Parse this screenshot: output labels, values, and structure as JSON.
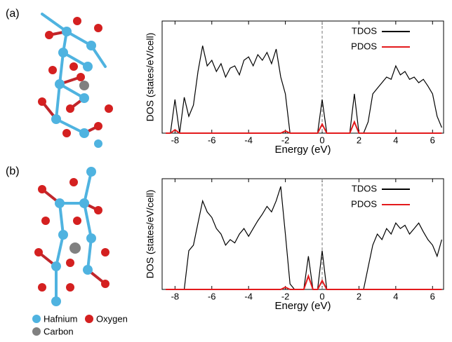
{
  "chart_data": [
    {
      "type": "line",
      "panel_label": "(a)",
      "xlabel": "Energy (eV)",
      "ylabel": "DOS (states/eV/cell)",
      "xlim": [
        -8.7,
        6.6
      ],
      "xticks": [
        -8,
        -6,
        -4,
        -2,
        0,
        2,
        4,
        6
      ],
      "ylim": [
        0,
        10
      ],
      "vline": 0,
      "legend": "upper right",
      "x": [
        -8.5,
        -8.25,
        -8,
        -7.75,
        -7.5,
        -7.25,
        -7,
        -6.75,
        -6.5,
        -6.25,
        -6,
        -5.75,
        -5.5,
        -5.25,
        -5,
        -4.75,
        -4.5,
        -4.25,
        -4,
        -3.75,
        -3.5,
        -3.25,
        -3,
        -2.75,
        -2.5,
        -2.25,
        -2,
        -1.75,
        -1.5,
        -1.25,
        -1,
        -0.75,
        -0.5,
        -0.25,
        0,
        0.25,
        0.5,
        0.75,
        1,
        1.25,
        1.5,
        1.75,
        2,
        2.25,
        2.5,
        2.75,
        3,
        3.25,
        3.5,
        3.75,
        4,
        4.25,
        4.5,
        4.75,
        5,
        5.25,
        5.5,
        5.75,
        6,
        6.25,
        6.5
      ],
      "series": [
        {
          "name": "TDOS",
          "color": "#000000",
          "values": [
            0,
            0,
            3.0,
            0,
            3.2,
            1.5,
            2.5,
            5.5,
            7.8,
            6.0,
            6.5,
            5.5,
            6.2,
            5.0,
            5.8,
            6.0,
            5.2,
            6.5,
            6.8,
            6.0,
            7.0,
            6.5,
            7.2,
            6.2,
            7.5,
            5.0,
            3.5,
            0,
            0,
            0,
            0,
            0,
            0,
            0,
            3.0,
            0,
            0,
            0,
            0,
            0,
            0,
            3.5,
            0,
            0,
            1.0,
            3.5,
            4.0,
            4.5,
            5.0,
            4.8,
            6.0,
            5.2,
            5.5,
            4.8,
            5.0,
            4.5,
            4.8,
            4.2,
            3.5,
            1.5,
            0.5
          ]
        },
        {
          "name": "PDOS",
          "color": "#e31a1c",
          "values": [
            0,
            0,
            0.3,
            0,
            0,
            0,
            0,
            0,
            0,
            0,
            0,
            0,
            0,
            0,
            0,
            0,
            0,
            0,
            0,
            0,
            0,
            0,
            0,
            0,
            0,
            0,
            0.2,
            0,
            0,
            0,
            0,
            0,
            0,
            0,
            0.8,
            0,
            0,
            0,
            0,
            0,
            0,
            1.0,
            0,
            0,
            0,
            0,
            0,
            0,
            0,
            0,
            0,
            0,
            0,
            0,
            0,
            0,
            0,
            0,
            0,
            0,
            0
          ]
        }
      ]
    },
    {
      "type": "line",
      "panel_label": "(b)",
      "xlabel": "Energy (eV)",
      "ylabel": "DOS (states/eV/cell)",
      "xlim": [
        -8.7,
        6.6
      ],
      "xticks": [
        -8,
        -6,
        -4,
        -2,
        0,
        2,
        4,
        6
      ],
      "ylim": [
        0,
        10
      ],
      "vline": 0,
      "legend": "upper right",
      "x": [
        -8.5,
        -8.25,
        -8,
        -7.75,
        -7.5,
        -7.25,
        -7,
        -6.75,
        -6.5,
        -6.25,
        -6,
        -5.75,
        -5.5,
        -5.25,
        -5,
        -4.75,
        -4.5,
        -4.25,
        -4,
        -3.75,
        -3.5,
        -3.25,
        -3,
        -2.75,
        -2.5,
        -2.25,
        -2,
        -1.75,
        -1.5,
        -1.25,
        -1,
        -0.75,
        -0.5,
        -0.25,
        0,
        0.25,
        0.5,
        0.75,
        1,
        1.25,
        1.5,
        1.75,
        2,
        2.25,
        2.5,
        2.75,
        3,
        3.25,
        3.5,
        3.75,
        4,
        4.25,
        4.5,
        4.75,
        5,
        5.25,
        5.5,
        5.75,
        6,
        6.25,
        6.5
      ],
      "series": [
        {
          "name": "TDOS",
          "color": "#000000",
          "values": [
            0,
            0,
            0,
            0,
            0,
            3.5,
            4.0,
            6.0,
            8.0,
            7.0,
            6.5,
            5.5,
            5.0,
            4.0,
            4.5,
            4.2,
            5.0,
            5.5,
            4.8,
            5.5,
            6.2,
            6.8,
            7.5,
            7.0,
            8.0,
            9.3,
            5.0,
            0.5,
            0,
            0,
            0,
            3.0,
            0,
            0,
            3.5,
            0,
            0,
            0,
            0,
            0,
            0,
            0,
            0,
            0,
            2.0,
            4.0,
            5.0,
            4.5,
            5.5,
            5.0,
            6.0,
            5.5,
            5.8,
            5.0,
            5.5,
            6.0,
            5.2,
            4.5,
            4.0,
            3.0,
            4.5
          ]
        },
        {
          "name": "PDOS",
          "color": "#e31a1c",
          "values": [
            0,
            0,
            0,
            0,
            0,
            0,
            0,
            0,
            0,
            0,
            0,
            0,
            0,
            0,
            0,
            0,
            0,
            0,
            0,
            0,
            0,
            0,
            0,
            0,
            0,
            0,
            0.2,
            0,
            0,
            0,
            0,
            1.2,
            0,
            0,
            0.8,
            0,
            0,
            0,
            0,
            0,
            0,
            0,
            0,
            0,
            0,
            0,
            0,
            0,
            0,
            0,
            0,
            0,
            0,
            0,
            0,
            0,
            0,
            0,
            0,
            0,
            0
          ]
        }
      ]
    }
  ],
  "structure_legend": [
    "Hafnium",
    "Oxygen",
    "Carbon"
  ]
}
